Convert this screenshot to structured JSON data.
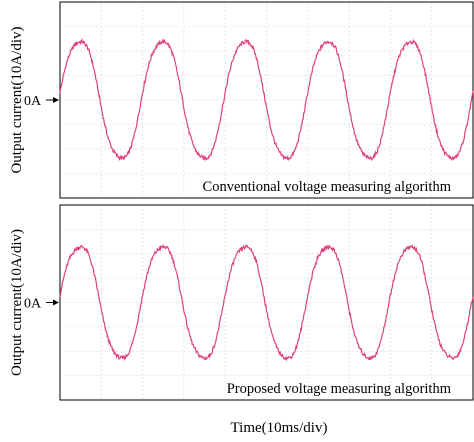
{
  "figure": {
    "xlabel": "Time(10ms/div)"
  },
  "chart_data": [
    {
      "type": "line",
      "ylabel": "Output current(10A/div)",
      "zero_label": "0A",
      "annotation": "Conventional voltage measuring algorithm",
      "x_unit": "ms",
      "xlim": [
        0,
        100
      ],
      "y_unit": "A",
      "ylim": [
        -40,
        40
      ],
      "grid": true,
      "waveform": {
        "shape": "sine",
        "frequency_hz": 50,
        "amplitude_a": 25,
        "phase_deg": 5,
        "cycles_shown": 5.1
      },
      "color": "#e0407f"
    },
    {
      "type": "line",
      "ylabel": "Output current(10A/div)",
      "zero_label": "0A",
      "annotation": "Proposed voltage measuring algorithm",
      "x_unit": "ms",
      "xlim": [
        0,
        100
      ],
      "y_unit": "A",
      "ylim": [
        -40,
        40
      ],
      "grid": true,
      "waveform": {
        "shape": "sine",
        "frequency_hz": 50,
        "amplitude_a": 24,
        "phase_deg": 5,
        "cycles_shown": 5.1
      },
      "color": "#e0407f"
    }
  ]
}
